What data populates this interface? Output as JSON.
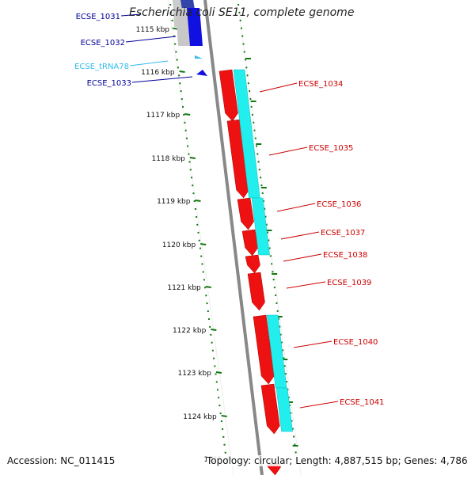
{
  "title": "Escherichia coli SE11, complete genome",
  "footer": {
    "accession": "Accession: NC_011415",
    "summary": "Topology: circular; Length: 4,887,515 bp; Genes: 4,786"
  },
  "colors": {
    "forward_cds": "#1010e0",
    "reverse_cds": "#ee1111",
    "trna": "#33bbee",
    "rna_strand": "#22eeee",
    "kbp_tick": "#117711",
    "backbone": "#888888",
    "label_left": "#000099",
    "label_trna": "#33bbee",
    "label_right": "#cc0000"
  },
  "kbp_ticks": [
    "1115 kbp",
    "1116 kbp",
    "1117 kbp",
    "1118 kbp",
    "1119 kbp",
    "1120 kbp",
    "1121 kbp",
    "1122 kbp",
    "1123 kbp",
    "1124 kbp",
    "1125"
  ],
  "left_features": [
    {
      "label": "ECSE_1031",
      "type": "cds"
    },
    {
      "label": "ECSE_1032",
      "type": "cds"
    },
    {
      "label": "ECSE_tRNA78",
      "type": "trna"
    },
    {
      "label": "ECSE_1033",
      "type": "cds"
    }
  ],
  "right_features": [
    "ECSE_1034",
    "ECSE_1035",
    "ECSE_1036",
    "ECSE_1037",
    "ECSE_1038",
    "ECSE_1039",
    "ECSE_1040",
    "ECSE_1041"
  ]
}
